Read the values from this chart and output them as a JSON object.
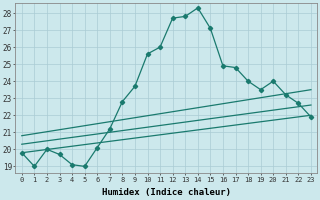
{
  "xlabel": "Humidex (Indice chaleur)",
  "background_color": "#cce8ec",
  "line_color": "#1a7a6e",
  "xlim": [
    -0.5,
    23.5
  ],
  "ylim": [
    18.6,
    28.6
  ],
  "xticks": [
    0,
    1,
    2,
    3,
    4,
    5,
    6,
    7,
    8,
    9,
    10,
    11,
    12,
    13,
    14,
    15,
    16,
    17,
    18,
    19,
    20,
    21,
    22,
    23
  ],
  "yticks": [
    19,
    20,
    21,
    22,
    23,
    24,
    25,
    26,
    27,
    28
  ],
  "grid_color": "#aaccd4",
  "line1_x": [
    0,
    1,
    2,
    3,
    4,
    5,
    6,
    7,
    8,
    9,
    10,
    11,
    12,
    13,
    14,
    15,
    16,
    17,
    18,
    19,
    20,
    21,
    22,
    23
  ],
  "line1_y": [
    19.8,
    19.0,
    20.0,
    19.7,
    19.1,
    19.0,
    20.1,
    21.2,
    22.8,
    23.7,
    25.6,
    26.0,
    27.7,
    27.8,
    28.3,
    27.1,
    24.9,
    24.8,
    24.0,
    23.5,
    24.0,
    23.2,
    22.7,
    21.9
  ],
  "line2_x": [
    0,
    23
  ],
  "line2_y": [
    19.8,
    22.0
  ],
  "line3_x": [
    0,
    23
  ],
  "line3_y": [
    20.3,
    22.6
  ],
  "line4_x": [
    0,
    23
  ],
  "line4_y": [
    20.8,
    23.5
  ]
}
